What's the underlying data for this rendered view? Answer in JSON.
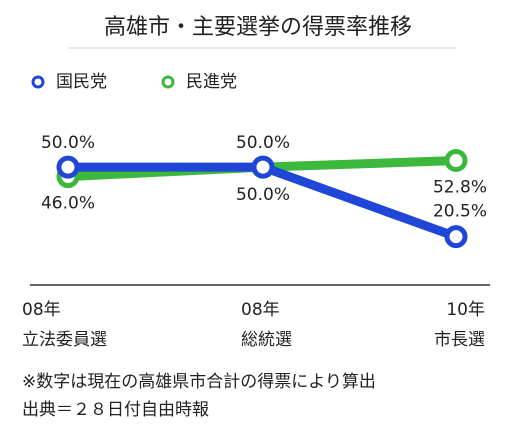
{
  "chart_data": {
    "type": "line",
    "title": "高雄市・主要選挙の得票率推移",
    "categories": [
      "08年\n立法委員選",
      "08年\n総統選",
      "10年\n市長選"
    ],
    "series": [
      {
        "name": "国民党",
        "color": "#1f46d6",
        "values": [
          50.0,
          50.0,
          20.5
        ],
        "value_labels": [
          "50.0%",
          "50.0%",
          "20.5%"
        ]
      },
      {
        "name": "民進党",
        "color": "#3cb83c",
        "values": [
          46.0,
          50.0,
          52.8
        ],
        "value_labels": [
          "46.0%",
          "50.0%",
          "52.8%"
        ]
      }
    ],
    "ylim": [
      0,
      70
    ],
    "notes": [
      "※数字は現在の高雄県市合計の得票により算出",
      "出典＝２８日付自由時報"
    ]
  }
}
